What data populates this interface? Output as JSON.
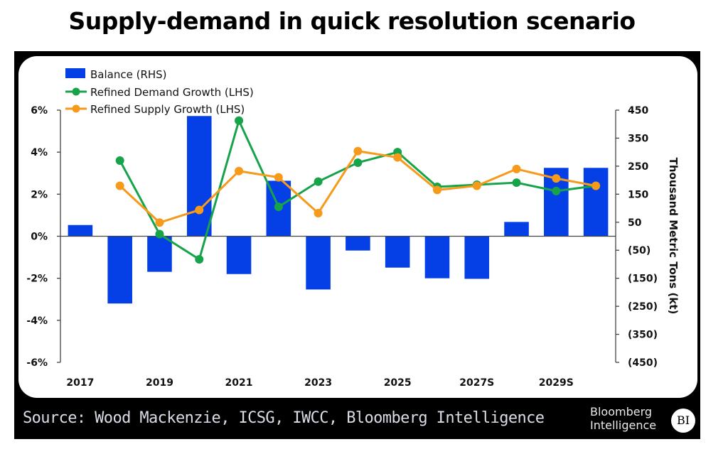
{
  "header": {
    "title": "Supply-demand in quick resolution scenario"
  },
  "footer": {
    "source": "Source: Wood Mackenzie, ICSG, IWCC, Bloomberg Intelligence",
    "brand_line1": "Bloomberg",
    "brand_line2": "Intelligence",
    "brand_badge": "BI"
  },
  "chart_data": {
    "type": "bar",
    "title": "Supply-demand in quick resolution scenario",
    "categories": [
      "2017",
      "2018",
      "2019",
      "2020",
      "2021",
      "2022",
      "2023",
      "2024",
      "2025",
      "2026",
      "2027S",
      "2028S",
      "2029S",
      "2030S"
    ],
    "x_tick_labels": [
      "2017",
      "2019",
      "2021",
      "2023",
      "2025",
      "2027S",
      "2029S"
    ],
    "legend_position": "top-left",
    "colors": {
      "balance": "#0540e6",
      "demand": "#16a34a",
      "supply": "#f59a1b"
    },
    "left_axis": {
      "label": "",
      "ylim": [
        -6,
        6
      ],
      "ticks": [
        6,
        4,
        2,
        0,
        -2,
        -4,
        -6
      ],
      "tick_labels": [
        "6%",
        "4%",
        "2%",
        "0%",
        "-2%",
        "-4%",
        "-6%"
      ]
    },
    "right_axis": {
      "label": "Thousand Metric Tons (kt)",
      "ylim": [
        -450,
        450
      ],
      "ticks": [
        450,
        350,
        250,
        150,
        50,
        -50,
        -150,
        -250,
        -350,
        -450
      ],
      "tick_labels": [
        "450",
        "350",
        "250",
        "150",
        "50",
        "(50)",
        "(150)",
        "(250)",
        "(350)",
        "(450)"
      ]
    },
    "series": [
      {
        "name": "Balance (RHS)",
        "type": "bar",
        "axis": "right",
        "values": [
          40,
          -240,
          -127,
          429,
          -135,
          198,
          -190,
          -51,
          -112,
          -150,
          -152,
          51,
          244,
          244
        ]
      },
      {
        "name": "Refined Demand Growth (LHS)",
        "type": "line",
        "axis": "left",
        "values": [
          null,
          3.6,
          0.1,
          -1.1,
          5.5,
          1.4,
          2.6,
          3.5,
          4.0,
          2.35,
          2.45,
          2.55,
          2.15,
          2.4
        ]
      },
      {
        "name": "Refined Supply Growth (LHS)",
        "type": "line",
        "axis": "left",
        "values": [
          null,
          2.4,
          0.65,
          1.25,
          3.1,
          2.8,
          1.1,
          4.05,
          3.75,
          2.2,
          2.4,
          3.2,
          2.75,
          2.4
        ]
      }
    ],
    "grid": false
  }
}
